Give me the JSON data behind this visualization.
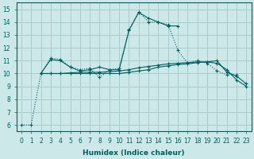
{
  "bg_color": "#cce8e8",
  "grid_color": "#aacccc",
  "line_color": "#006060",
  "xlabel": "Humidex (Indice chaleur)",
  "ylim": [
    5.5,
    15.5
  ],
  "xlim": [
    -0.5,
    23.5
  ],
  "yticks": [
    6,
    7,
    8,
    9,
    10,
    11,
    12,
    13,
    14,
    15
  ],
  "xticks": [
    0,
    1,
    2,
    3,
    4,
    5,
    6,
    7,
    8,
    9,
    10,
    11,
    12,
    13,
    14,
    15,
    16,
    17,
    18,
    19,
    20,
    21,
    22,
    23
  ],
  "line1_x": [
    0,
    1,
    2,
    3,
    4,
    5,
    6,
    7,
    8,
    9,
    10,
    11,
    12,
    13,
    14,
    15,
    16,
    17,
    18,
    19,
    20,
    21,
    22
  ],
  "line1_y": [
    6.0,
    6.0,
    10.0,
    11.2,
    11.1,
    10.5,
    10.3,
    10.4,
    9.7,
    10.3,
    10.4,
    13.4,
    14.8,
    14.0,
    14.0,
    13.8,
    11.8,
    10.8,
    11.0,
    10.8,
    10.2,
    9.9,
    9.9
  ],
  "line2_x": [
    2,
    3,
    4,
    5,
    6,
    7,
    8,
    9,
    10,
    11,
    12,
    13,
    14,
    15,
    16
  ],
  "line2_y": [
    10.0,
    11.1,
    11.0,
    10.5,
    10.2,
    10.3,
    10.5,
    10.3,
    10.3,
    13.35,
    14.75,
    14.3,
    14.0,
    13.7,
    13.7
  ],
  "line3_x": [
    2,
    3,
    4,
    5,
    6,
    7,
    8,
    9,
    10,
    11,
    12,
    13,
    14,
    15,
    16,
    17,
    18,
    19,
    20,
    21,
    22,
    23
  ],
  "line3_y": [
    10.0,
    10.0,
    10.0,
    10.05,
    10.1,
    10.1,
    10.1,
    10.15,
    10.2,
    10.3,
    10.45,
    10.55,
    10.65,
    10.75,
    10.8,
    10.85,
    10.9,
    10.9,
    10.8,
    10.3,
    9.5,
    9.0
  ],
  "line4_x": [
    2,
    3,
    4,
    5,
    6,
    7,
    8,
    9,
    10,
    11,
    12,
    13,
    14,
    15,
    16,
    17,
    18,
    19,
    20,
    21,
    22,
    23
  ],
  "line4_y": [
    10.0,
    10.0,
    10.0,
    10.0,
    10.0,
    10.0,
    10.0,
    10.0,
    10.0,
    10.1,
    10.2,
    10.3,
    10.5,
    10.6,
    10.7,
    10.75,
    10.85,
    10.9,
    11.0,
    10.1,
    9.8,
    9.2
  ]
}
